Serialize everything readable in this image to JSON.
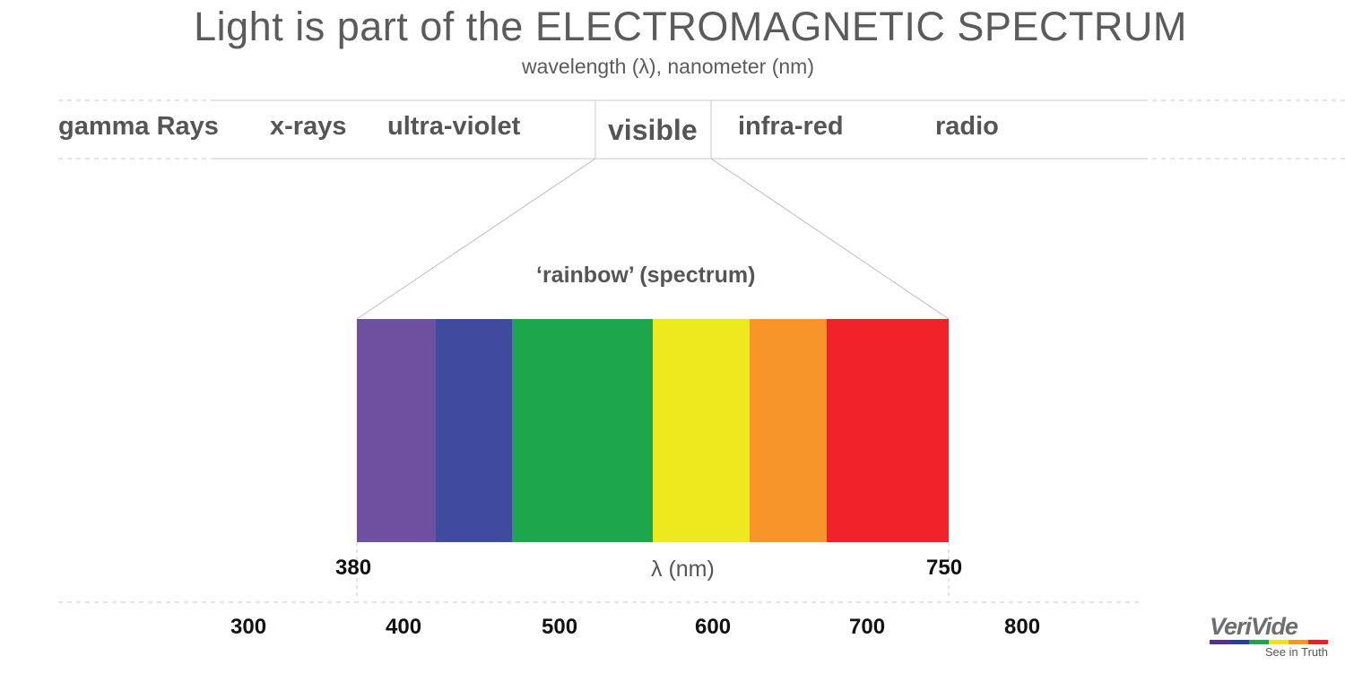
{
  "title": "Light is part of the ELECTROMAGNETIC SPECTRUM",
  "subtitle": "wavelength (λ), nanometer (nm)",
  "bands": [
    {
      "key": "gamma",
      "label": "gamma Rays"
    },
    {
      "key": "xray",
      "label": "x-rays"
    },
    {
      "key": "uv",
      "label": "ultra-violet"
    },
    {
      "key": "visible",
      "label": "visible"
    },
    {
      "key": "ir",
      "label": "infra-red"
    },
    {
      "key": "radio",
      "label": "radio"
    }
  ],
  "rainbow": {
    "label": "‘rainbow’ (spectrum)",
    "range_start": "380",
    "range_end": "750",
    "axis_label": "λ (nm)",
    "colors": [
      {
        "name": "violet",
        "hex": "#6f4f9f"
      },
      {
        "name": "blue",
        "hex": "#404b9f"
      },
      {
        "name": "green",
        "hex": "#1ea64c"
      },
      {
        "name": "yellow",
        "hex": "#eee81e"
      },
      {
        "name": "orange",
        "hex": "#f7952a"
      },
      {
        "name": "red",
        "hex": "#ee2228"
      }
    ]
  },
  "scale_ticks": [
    "300",
    "400",
    "500",
    "600",
    "700",
    "800"
  ],
  "logo": {
    "name": "VeriVide",
    "tagline": "See in Truth",
    "bar_colors": [
      "#5a2d8c",
      "#2a3f9a",
      "#22a24a",
      "#f2e21e",
      "#f7952a",
      "#e8202a"
    ]
  }
}
